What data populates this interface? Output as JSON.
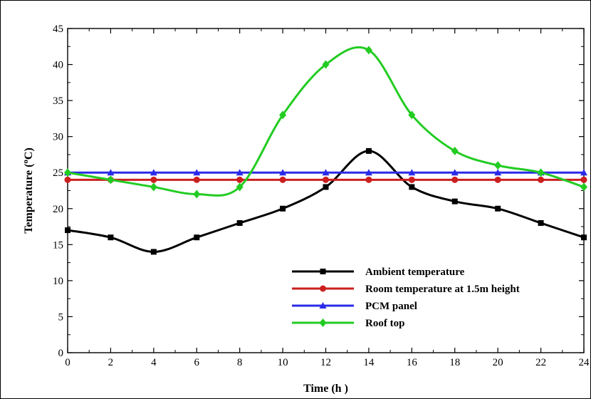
{
  "chart_data": {
    "type": "line",
    "xlabel": "Time (h  )",
    "ylabel": "Temperature (",
    "ylabel_sup": "o",
    "ylabel_tail": "C)",
    "x_ticks": [
      0,
      2,
      4,
      6,
      8,
      10,
      12,
      14,
      16,
      18,
      20,
      22,
      24
    ],
    "y_ticks": [
      0,
      5,
      10,
      15,
      20,
      25,
      30,
      35,
      40,
      45
    ],
    "xlim": [
      0,
      24
    ],
    "ylim": [
      0,
      45
    ],
    "grid": false,
    "legend_position": "bottom-right",
    "series": [
      {
        "name": "Ambient temperature",
        "color": "#000000",
        "marker": "square",
        "x": [
          0,
          2,
          4,
          6,
          8,
          10,
          12,
          14,
          16,
          18,
          20,
          22,
          24
        ],
        "y": [
          17,
          16,
          14,
          16,
          18,
          20,
          23,
          28,
          23,
          21,
          20,
          18,
          16
        ]
      },
      {
        "name": "Room temperature at 1.5m height",
        "color": "#cc1f1f",
        "marker": "circle",
        "x": [
          0,
          2,
          4,
          6,
          8,
          10,
          12,
          14,
          16,
          18,
          20,
          22,
          24
        ],
        "y": [
          24,
          24,
          24,
          24,
          24,
          24,
          24,
          24,
          24,
          24,
          24,
          24,
          24
        ]
      },
      {
        "name": "PCM panel",
        "color": "#2a2ae8",
        "marker": "triangle",
        "x": [
          0,
          2,
          4,
          6,
          8,
          10,
          12,
          14,
          16,
          18,
          20,
          22,
          24
        ],
        "y": [
          25,
          25,
          25,
          25,
          25,
          25,
          25,
          25,
          25,
          25,
          25,
          25,
          25
        ]
      },
      {
        "name": "Roof top",
        "color": "#22cc22",
        "marker": "diamond",
        "x": [
          0,
          2,
          4,
          6,
          8,
          10,
          12,
          14,
          16,
          18,
          20,
          22,
          24
        ],
        "y": [
          25,
          24,
          23,
          22,
          23,
          33,
          40,
          42,
          33,
          28,
          26,
          25,
          23
        ]
      }
    ]
  }
}
